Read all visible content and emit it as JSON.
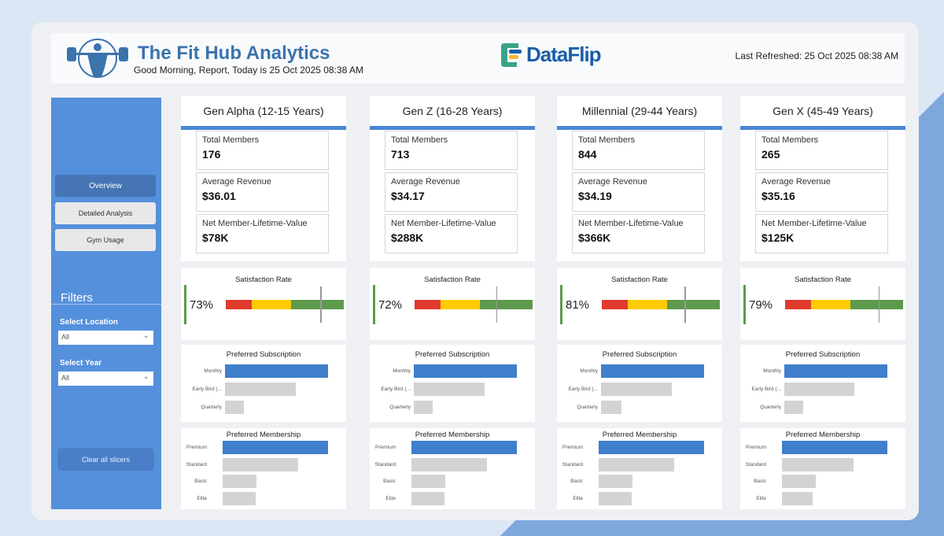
{
  "header": {
    "title": "The Fit Hub Analytics",
    "greeting": "Good Morning, Report, Today is 25 Oct 2025 08:38 AM",
    "brand": "DataFlip",
    "last_refreshed": "Last Refreshed:  25 Oct 2025 08:38 AM"
  },
  "sidebar": {
    "nav": [
      {
        "label": "Overview",
        "active": true
      },
      {
        "label": "Detailed Analysis",
        "active": false
      },
      {
        "label": "Gym Usage",
        "active": false
      }
    ],
    "filters_title": "Filters",
    "location_label": "Select Location",
    "location_value": "All",
    "year_label": "Select Year",
    "year_value": "All",
    "clear_label": "Clear all slicers"
  },
  "labels": {
    "total_members": "Total Members",
    "avg_revenue": "Average Revenue",
    "net_ltv": "Net Member-Lifetime-Value",
    "satisfaction": "Satisfaction Rate",
    "subscription": "Preferred Subscription",
    "membership": "Preferred Membership"
  },
  "subscription_categories": [
    "Monthly",
    "Early Bird (...",
    "Quarterly"
  ],
  "membership_categories": [
    "Premium",
    "Standard",
    "Basic",
    "Elite"
  ],
  "colors": {
    "accent": "#4a86d4",
    "top_bar": "#3f7fcb",
    "other_bar": "#d3d3d3",
    "red": "#e03a2f",
    "yellow": "#ffcb00",
    "green": "#5d9a4e"
  },
  "gauge_bands_percent": [
    22,
    55,
    100
  ],
  "segments": [
    {
      "title": "Gen Alpha (12-15 Years)",
      "total_members": "176",
      "avg_revenue": "$36.01",
      "net_ltv": "$78K",
      "satisfaction": "73%",
      "target_percent": 80,
      "subscription_relative": [
        100,
        69,
        18
      ],
      "membership_relative": [
        100,
        72,
        32,
        31
      ]
    },
    {
      "title": "Gen Z (16-28 Years)",
      "total_members": "713",
      "avg_revenue": "$34.17",
      "net_ltv": "$288K",
      "satisfaction": "72%",
      "target_percent": 69,
      "subscription_relative": [
        100,
        69,
        18
      ],
      "membership_relative": [
        100,
        72,
        32,
        31
      ]
    },
    {
      "title": "Millennial (29-44 Years)",
      "total_members": "844",
      "avg_revenue": "$34.19",
      "net_ltv": "$366K",
      "satisfaction": "81%",
      "target_percent": 70,
      "subscription_relative": [
        100,
        69,
        20
      ],
      "membership_relative": [
        100,
        72,
        32,
        31
      ]
    },
    {
      "title": "Gen X (45-49 Years)",
      "total_members": "265",
      "avg_revenue": "$35.16",
      "net_ltv": "$125K",
      "satisfaction": "79%",
      "target_percent": 79,
      "subscription_relative": [
        100,
        68,
        18
      ],
      "membership_relative": [
        100,
        68,
        32,
        29
      ]
    }
  ]
}
